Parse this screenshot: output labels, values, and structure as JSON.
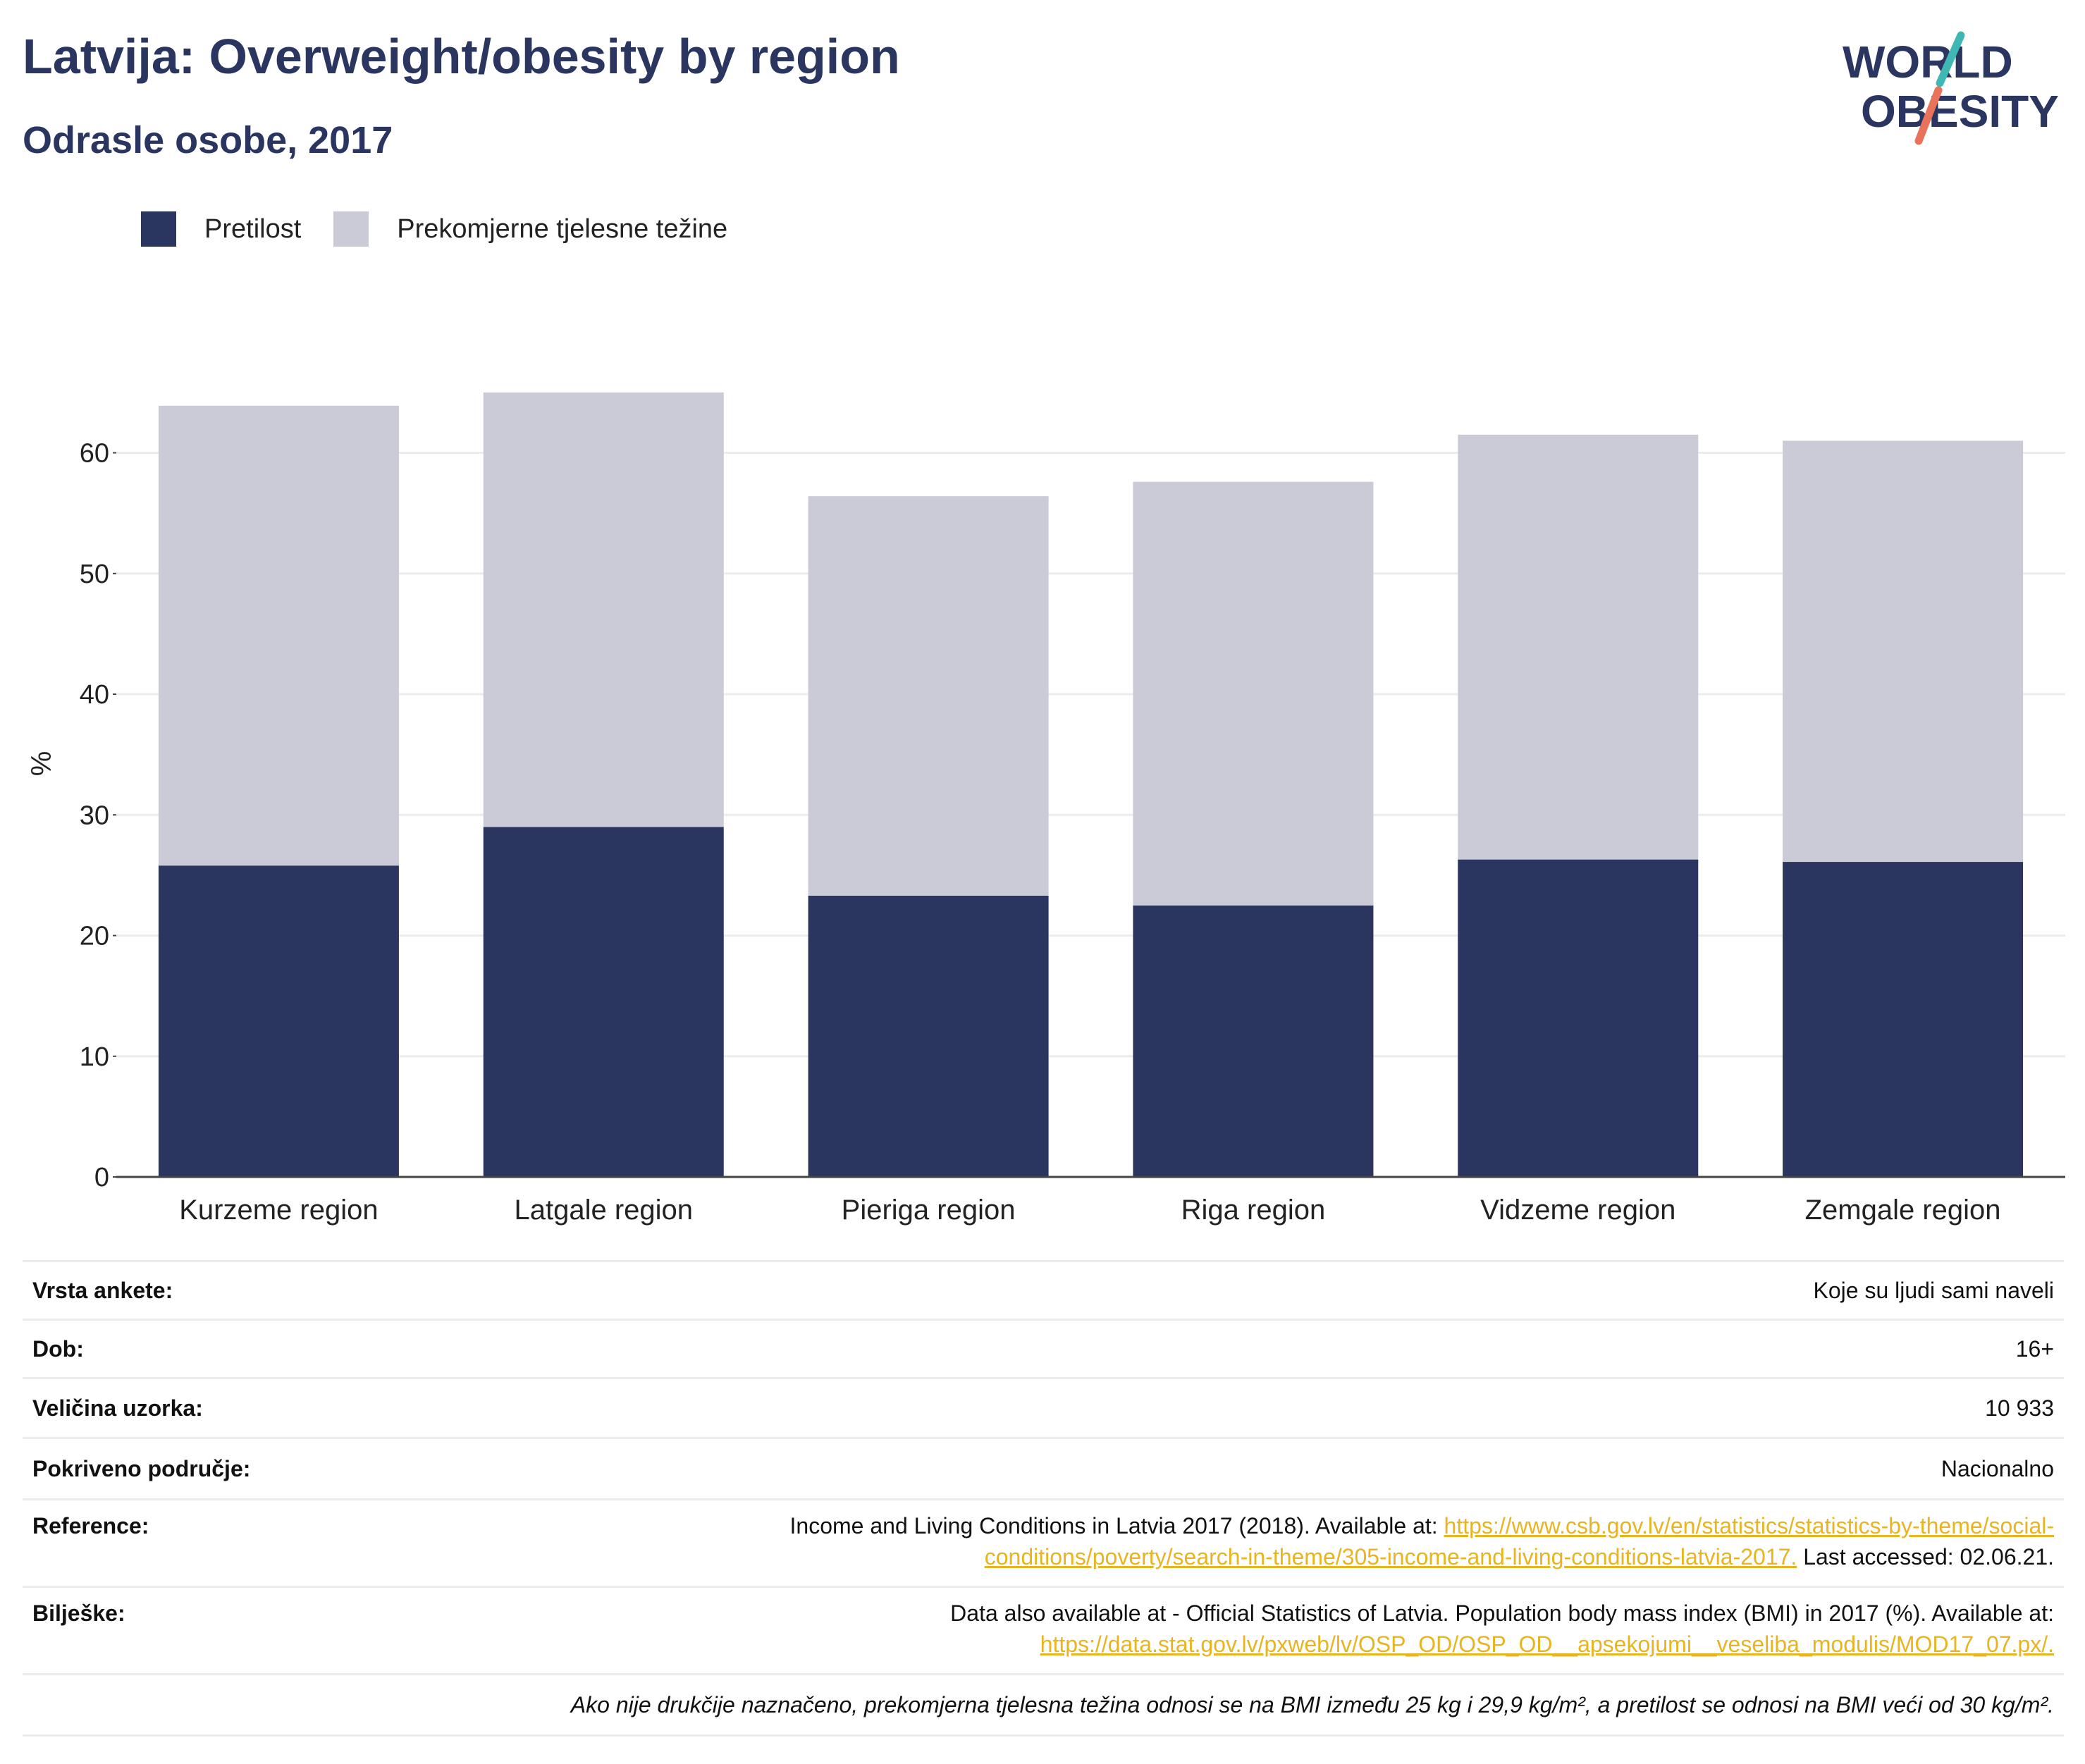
{
  "title": "Latvija: Overweight/obesity by region",
  "subtitle": "Odrasle osobe, 2017",
  "logo": {
    "line1": "WORLD",
    "line2": "OBESITY"
  },
  "colors": {
    "obesity": "#2a365f",
    "overweight": "#cacbd6",
    "title": "#2a365f",
    "link": "#e8b520",
    "logo_teal": "#3fb7b5",
    "logo_coral": "#e8735a"
  },
  "chart_data": {
    "type": "bar",
    "stacked": true,
    "categories": [
      "Kurzeme region",
      "Latgale region",
      "Pieriga region",
      "Riga region",
      "Vidzeme region",
      "Zemgale region"
    ],
    "series": [
      {
        "name": "Pretilost",
        "values": [
          25.8,
          29.0,
          23.3,
          22.5,
          26.3,
          26.1
        ]
      },
      {
        "name": "Prekomjerne tjelesne težine",
        "values": [
          38.1,
          36.0,
          33.1,
          35.1,
          35.2,
          34.9
        ]
      }
    ],
    "ylabel": "%",
    "ylim": [
      0,
      72
    ],
    "yticks": [
      0,
      10,
      20,
      30,
      40,
      50,
      60
    ],
    "grid": true,
    "legend": "top-left"
  },
  "meta": {
    "survey_label": "Vrsta ankete:",
    "survey_value": "Koje su ljudi sami naveli",
    "age_label": "Dob:",
    "age_value": "16+",
    "sample_label": "Veličina uzorka:",
    "sample_value": "10 933",
    "area_label": "Pokriveno područje:",
    "area_value": "Nacionalno",
    "ref_label": "Reference:",
    "ref_text": "Income and Living Conditions in Latvia 2017 (2018). Available at: ",
    "ref_link_1": "https://www.csb.gov.lv/en/statistics/statistics-by-theme/social-",
    "ref_link_2": "conditions/poverty/search-in-theme/305-income-and-living-conditions-latvia-2017.",
    "ref_accessed": " Last accessed: 02.06.21.",
    "notes_label": "Bilješke:",
    "notes_text": "Data also available at - Official Statistics of Latvia. Population body mass index (BMI) in 2017 (%). Available at:",
    "notes_link": "https://data.stat.gov.lv/pxweb/lv/OSP_OD/OSP_OD__apsekojumi__veseliba_modulis/MOD17_07.px/.",
    "footnote": "Ako nije drukčije naznačeno, prekomjerna tjelesna težina odnosi se na BMI između 25 kg i 29,9 kg/m², a pretilost se odnosi na BMI veći od 30 kg/m²."
  }
}
